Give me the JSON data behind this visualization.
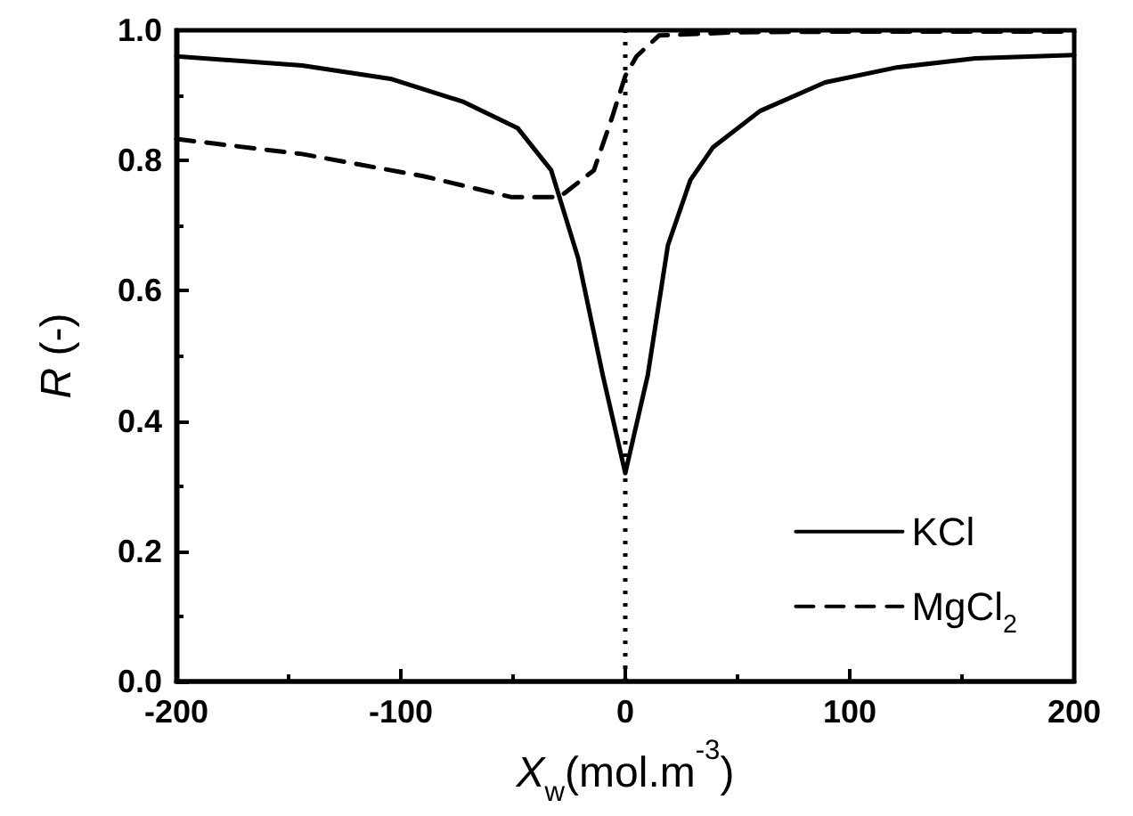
{
  "chart_data": {
    "type": "line",
    "xlabel": "X$_{w}$(mol.m$^{-3}$)",
    "ylabel": "R (-)",
    "xlim": [
      -200,
      200
    ],
    "xticks": [
      -200,
      -100,
      0,
      100,
      200
    ],
    "ylim": [
      0,
      1
    ],
    "yticks": [
      {
        "value": 0,
        "label": "0.0"
      },
      {
        "value": 0.2,
        "label": "0.2"
      },
      {
        "value": 0.4,
        "label": "0.4"
      },
      {
        "value": 0.6,
        "label": "0.6"
      },
      {
        "value": 0.8,
        "label": "0.8"
      },
      {
        "value": 1,
        "label": "1.0"
      }
    ],
    "grid": false,
    "legend": "bottom right",
    "marker": "none",
    "ref_lines": [
      {
        "axis": "x",
        "value": 0,
        "line_style": "dotted",
        "color": "#000000"
      }
    ],
    "series": [
      {
        "name": "KCl",
        "color": "#000000",
        "line_style": "solid",
        "x": [
          -200,
          -144,
          -104,
          -72,
          -48,
          -33,
          -21,
          -10,
          0,
          10,
          19,
          29,
          39,
          60,
          89,
          121,
          156,
          200
        ],
        "values": [
          0.96,
          0.946,
          0.925,
          0.89,
          0.85,
          0.785,
          0.65,
          0.47,
          0.32,
          0.47,
          0.67,
          0.77,
          0.82,
          0.876,
          0.92,
          0.943,
          0.957,
          0.962
        ]
      },
      {
        "name": "MgCl$_{2}$",
        "color": "#000000",
        "line_style": "dashed",
        "x": [
          -200,
          -144,
          -90,
          -51,
          -30,
          -27,
          -14,
          -6,
          0,
          5,
          15,
          50,
          100,
          200
        ],
        "values": [
          0.833,
          0.81,
          0.776,
          0.744,
          0.744,
          0.75,
          0.785,
          0.865,
          0.93,
          0.96,
          0.992,
          0.997,
          0.998,
          0.998
        ]
      }
    ]
  }
}
